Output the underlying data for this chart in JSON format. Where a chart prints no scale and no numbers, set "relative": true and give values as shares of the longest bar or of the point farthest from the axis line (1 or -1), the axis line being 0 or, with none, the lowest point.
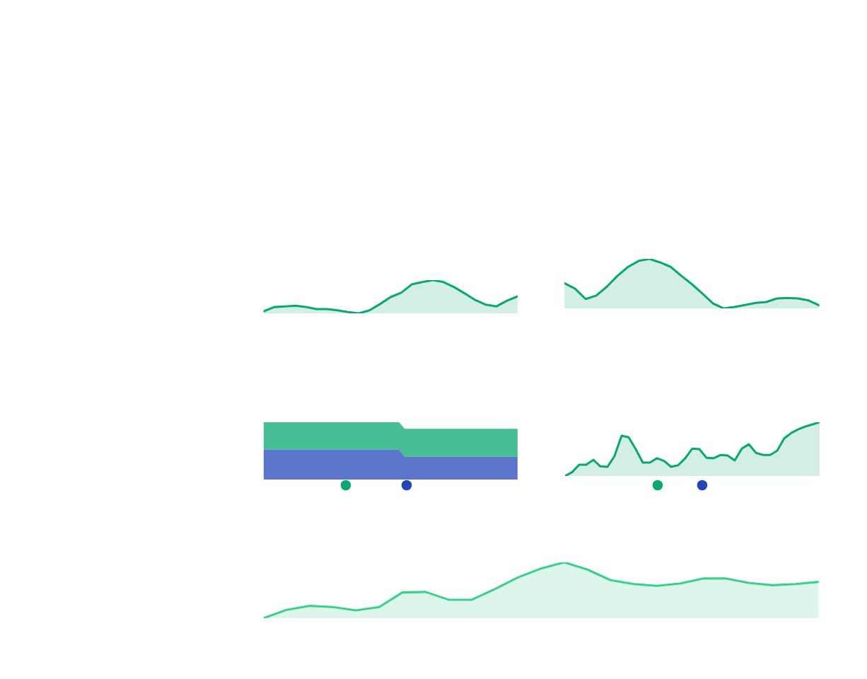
{
  "chart_data": [
    {
      "type": "area",
      "relative": true,
      "tick_labels": false,
      "grid": false,
      "legend": false,
      "categories": [
        null,
        null,
        null,
        null,
        null,
        null,
        null,
        null,
        null,
        null,
        null,
        null,
        null,
        null,
        null,
        null,
        null,
        null,
        null,
        null,
        null,
        null,
        null,
        null,
        null
      ],
      "series": [
        {
          "color": "#0aa870",
          "values": [
            0.06,
            0.19,
            0.21,
            0.23,
            0.19,
            0.13,
            0.13,
            0.09,
            0.04,
            0,
            0.09,
            0.28,
            0.49,
            0.62,
            0.87,
            0.94,
            1,
            0.94,
            0.79,
            0.6,
            0.4,
            0.26,
            0.21,
            0.38,
            0.51
          ]
        }
      ]
    },
    {
      "type": "area",
      "relative": true,
      "tick_labels": false,
      "grid": false,
      "legend": false,
      "categories": [
        null,
        null,
        null,
        null,
        null,
        null,
        null,
        null,
        null,
        null,
        null,
        null,
        null,
        null,
        null,
        null,
        null,
        null,
        null,
        null,
        null,
        null,
        null,
        null,
        null
      ],
      "series": [
        {
          "color": "#0aa870",
          "values": [
            0.51,
            0.4,
            0.19,
            0.26,
            0.44,
            0.66,
            0.84,
            0.96,
            1,
            0.93,
            0.84,
            0.66,
            0.49,
            0.3,
            0.1,
            0,
            0.03,
            0.07,
            0.11,
            0.13,
            0.2,
            0.21,
            0.2,
            0.16,
            0.06
          ]
        }
      ]
    },
    {
      "type": "area",
      "relative": true,
      "stacked": true,
      "tick_labels": false,
      "grid": false,
      "legend": false,
      "categories": [
        null,
        null,
        null,
        null,
        null,
        null,
        null,
        null,
        null,
        null,
        null,
        null,
        null,
        null,
        null,
        null,
        null,
        null,
        null,
        null,
        null,
        null,
        null,
        null,
        null,
        null,
        null,
        null,
        null,
        null,
        null,
        null,
        null,
        null,
        null,
        null,
        null,
        null,
        null,
        null,
        null,
        null,
        null,
        null,
        null,
        null
      ],
      "series": [
        {
          "color": "#2447b8",
          "values": [
            0.523,
            0.523,
            0.523,
            0.523,
            0.523,
            0.523,
            0.523,
            0.523,
            0.523,
            0.523,
            0.523,
            0.523,
            0.523,
            0.523,
            0.523,
            0.523,
            0.523,
            0.523,
            0.523,
            0.523,
            0.523,
            0.523,
            0.523,
            0.523,
            0.523,
            0.398,
            0.398,
            0.398,
            0.398,
            0.398,
            0.398,
            0.398,
            0.398,
            0.398,
            0.398,
            0.398,
            0.398,
            0.398,
            0.398,
            0.398,
            0.398,
            0.398,
            0.398,
            0.398,
            0.398,
            0.398
          ]
        },
        {
          "color": "#0aa870",
          "values": [
            0.477,
            0.477,
            0.477,
            0.477,
            0.477,
            0.477,
            0.477,
            0.477,
            0.477,
            0.477,
            0.477,
            0.477,
            0.477,
            0.477,
            0.477,
            0.477,
            0.477,
            0.477,
            0.477,
            0.477,
            0.477,
            0.477,
            0.477,
            0.477,
            0.477,
            0.488,
            0.488,
            0.488,
            0.488,
            0.488,
            0.488,
            0.488,
            0.488,
            0.488,
            0.488,
            0.488,
            0.488,
            0.488,
            0.488,
            0.488,
            0.488,
            0.488,
            0.488,
            0.488,
            0.488,
            0.488
          ]
        }
      ]
    },
    {
      "type": "area",
      "relative": true,
      "tick_labels": false,
      "grid": false,
      "legend": false,
      "categories": [
        null,
        null,
        null,
        null,
        null,
        null,
        null,
        null,
        null,
        null,
        null,
        null,
        null,
        null,
        null,
        null,
        null,
        null,
        null,
        null,
        null,
        null,
        null,
        null,
        null,
        null,
        null,
        null,
        null,
        null,
        null,
        null,
        null,
        null,
        null,
        null,
        null
      ],
      "series": [
        {
          "color": "#0aa870",
          "values": [
            0,
            0.07,
            0.21,
            0.21,
            0.3,
            0.18,
            0.17,
            0.37,
            0.75,
            0.72,
            0.5,
            0.25,
            0.25,
            0.33,
            0.28,
            0.17,
            0.2,
            0.33,
            0.51,
            0.5,
            0.34,
            0.33,
            0.39,
            0.38,
            0.29,
            0.51,
            0.59,
            0.43,
            0.39,
            0.39,
            0.47,
            0.7,
            0.8,
            0.87,
            0.92,
            0.96,
            1
          ]
        }
      ]
    },
    {
      "type": "area",
      "relative": true,
      "tick_labels": false,
      "grid": false,
      "legend": false,
      "categories": [
        null,
        null,
        null,
        null,
        null,
        null,
        null,
        null,
        null,
        null,
        null,
        null,
        null,
        null,
        null,
        null,
        null,
        null,
        null,
        null,
        null,
        null,
        null,
        null,
        null
      ],
      "series": [
        {
          "color": "#3ccf8e",
          "values": [
            0,
            0.15,
            0.22,
            0.2,
            0.14,
            0.2,
            0.46,
            0.47,
            0.33,
            0.33,
            0.52,
            0.73,
            0.89,
            1,
            0.87,
            0.68,
            0.61,
            0.58,
            0.62,
            0.71,
            0.71,
            0.63,
            0.59,
            0.61,
            0.65
          ]
        }
      ]
    }
  ]
}
